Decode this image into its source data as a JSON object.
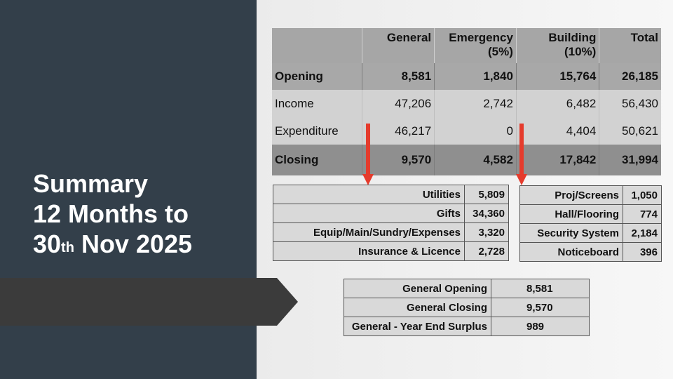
{
  "slide": {
    "title_line1": "Summary",
    "title_line2": "12 Months to",
    "title_line3_prefix": "30",
    "title_line3_sup": "th",
    "title_line3_suffix": " Nov 2025",
    "colors": {
      "panel": "#333f4a",
      "arrow_bar": "#3b3b3b",
      "red_arrow": "#e53b2c"
    }
  },
  "summary_table": {
    "headers": [
      "",
      "General",
      "Emergency (5%)",
      "Building (10%)",
      "Total"
    ],
    "header_lines": [
      [
        "",
        ""
      ],
      [
        "General",
        ""
      ],
      [
        "Emergency",
        "(5%)"
      ],
      [
        "Building",
        "(10%)"
      ],
      [
        "Total",
        ""
      ]
    ],
    "rows": [
      {
        "label": "Opening",
        "values": [
          "8,581",
          "1,840",
          "15,764",
          "26,185"
        ]
      },
      {
        "label": "Income",
        "values": [
          "47,206",
          "2,742",
          "6,482",
          "56,430"
        ]
      },
      {
        "label": "Expenditure",
        "values": [
          "46,217",
          "0",
          "4,404",
          "50,621"
        ]
      },
      {
        "label": "Closing",
        "values": [
          "9,570",
          "4,582",
          "17,842",
          "31,994"
        ]
      }
    ]
  },
  "general_expenditure": [
    {
      "label": "Utilities",
      "value": "5,809"
    },
    {
      "label": "Gifts",
      "value": "34,360"
    },
    {
      "label": "Equip/Main/Sundry/Expenses",
      "value": "3,320"
    },
    {
      "label": "Insurance & Licence",
      "value": "2,728"
    }
  ],
  "building_expenditure": [
    {
      "label": "Proj/Screens",
      "value": "1,050"
    },
    {
      "label": "Hall/Flooring",
      "value": "774"
    },
    {
      "label": "Security System",
      "value": "2,184"
    },
    {
      "label": "Noticeboard",
      "value": "396"
    }
  ],
  "general_summary": [
    {
      "label": "General Opening",
      "value": "8,581"
    },
    {
      "label": "General Closing",
      "value": "9,570"
    },
    {
      "label": "General - Year End Surplus",
      "value": "989"
    }
  ]
}
